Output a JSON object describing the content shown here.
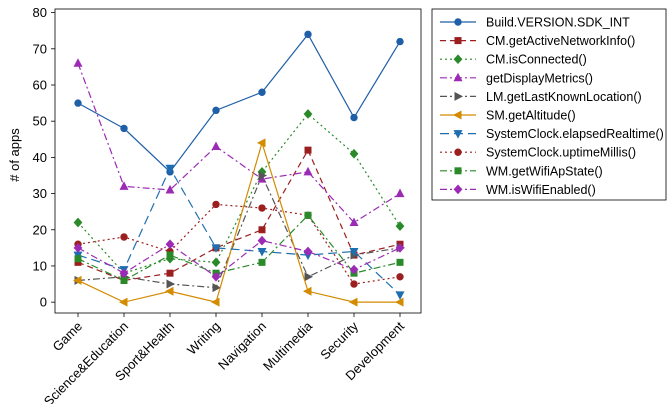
{
  "chart_data": {
    "type": "line",
    "title": "",
    "xlabel": "",
    "ylabel": "# of apps",
    "ylim": [
      -3,
      81
    ],
    "yticks": [
      0,
      10,
      20,
      30,
      40,
      50,
      60,
      70,
      80
    ],
    "grid": false,
    "legend_position": "outside-right",
    "categories": [
      "Game",
      "Science&Education",
      "Sport&Health",
      "Writing",
      "Navigation",
      "Multimedia",
      "Security",
      "Development"
    ],
    "series": [
      {
        "name": "Build.VERSION.SDK_INT",
        "color": "#1f5fa8",
        "dash": "solid",
        "marker": "circle",
        "values": [
          55,
          48,
          36,
          53,
          58,
          74,
          51,
          72
        ]
      },
      {
        "name": "CM.getActiveNetworkInfo()",
        "color": "#9c1f1f",
        "dash": "dash",
        "marker": "square",
        "values": [
          11,
          6,
          8,
          15,
          20,
          42,
          13,
          16
        ]
      },
      {
        "name": "CM.isConnected()",
        "color": "#2a8a2a",
        "dash": "dot",
        "marker": "diamond",
        "values": [
          22,
          8,
          12,
          11,
          36,
          52,
          41,
          21
        ]
      },
      {
        "name": "getDisplayMetrics()",
        "color": "#9b2bb5",
        "dash": "dashdot",
        "marker": "triangle-up",
        "values": [
          66,
          32,
          31,
          43,
          34,
          36,
          22,
          30
        ]
      },
      {
        "name": "LM.getLastKnownLocation()",
        "color": "#555555",
        "dash": "dashdot",
        "marker": "triangle-right",
        "values": [
          6,
          7,
          5,
          4,
          35,
          7,
          13,
          15
        ]
      },
      {
        "name": "SM.getAltitude()",
        "color": "#d38b00",
        "dash": "solid",
        "marker": "triangle-left",
        "values": [
          6,
          0,
          3,
          0,
          44,
          3,
          0,
          0
        ]
      },
      {
        "name": "SystemClock.elapsedRealtime()",
        "color": "#1f6fb0",
        "dash": "longdash",
        "marker": "triangle-down",
        "values": [
          13,
          9,
          37,
          15,
          14,
          13,
          14,
          2
        ]
      },
      {
        "name": "SystemClock.uptimeMillis()",
        "color": "#9c1f1f",
        "dash": "dot",
        "marker": "circle",
        "values": [
          16,
          18,
          14,
          27,
          26,
          24,
          5,
          7
        ]
      },
      {
        "name": "WM.getWifiApState()",
        "color": "#2a8a2a",
        "dash": "dashdot",
        "marker": "square",
        "values": [
          12,
          6,
          13,
          8,
          11,
          24,
          8,
          11
        ]
      },
      {
        "name": "WM.isWifiEnabled()",
        "color": "#9b2bb5",
        "dash": "dashdot",
        "marker": "diamond",
        "values": [
          15,
          8,
          16,
          7,
          17,
          14,
          9,
          15
        ]
      }
    ]
  }
}
